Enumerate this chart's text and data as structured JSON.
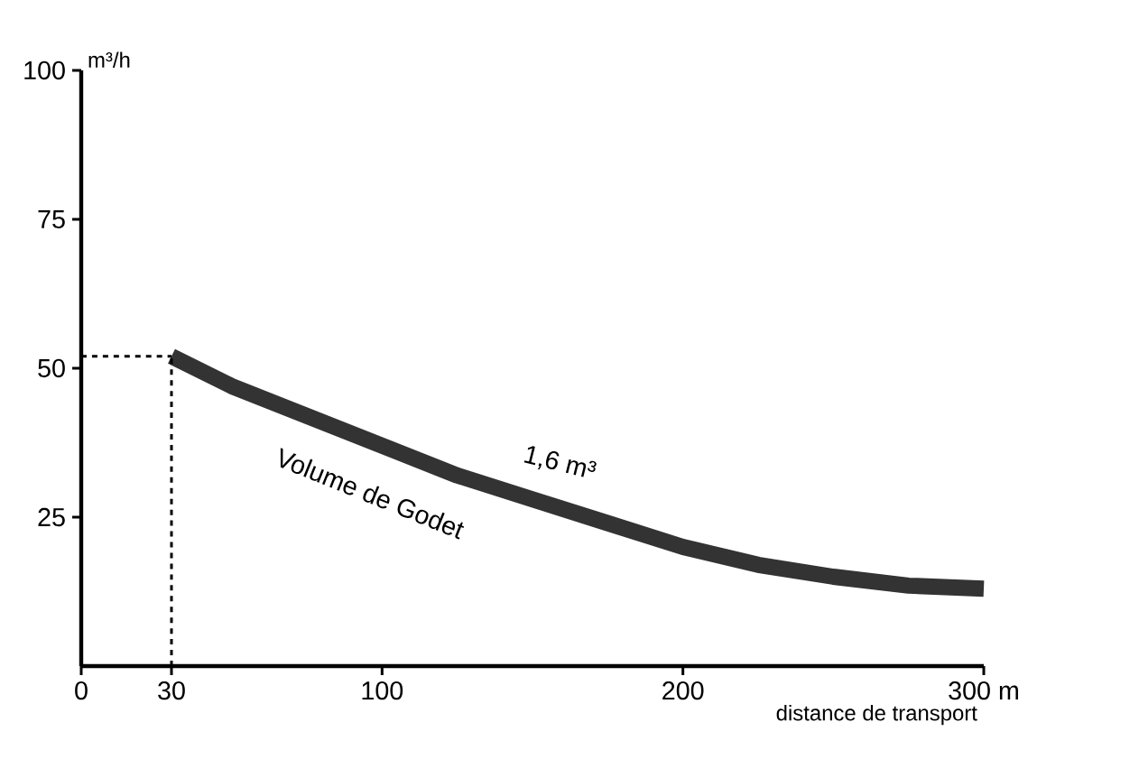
{
  "chart_data": {
    "type": "line",
    "xlabel": "distance de transport",
    "ylabel": "m³/h",
    "x": [
      30,
      50,
      75,
      100,
      125,
      150,
      175,
      200,
      225,
      250,
      275,
      300
    ],
    "series": [
      {
        "color": "#333333",
        "values": [
          52,
          47,
          42,
          37,
          32,
          28,
          24,
          20,
          17,
          15,
          13.5,
          13
        ]
      }
    ],
    "xlim": [
      0,
      300
    ],
    "ylim": [
      0,
      100
    ],
    "xticks": [
      0,
      30,
      100,
      200,
      {
        "value": 300,
        "label": "300 m"
      }
    ],
    "yticks": [
      25,
      50,
      75,
      100
    ],
    "ref_lines": [
      {
        "axis": "y",
        "value": 52,
        "line_style": "dashed"
      },
      {
        "axis": "x",
        "value": 30,
        "line_style": "dashed"
      }
    ],
    "annotations": [
      "1,6 m³",
      "Volume de Godet"
    ],
    "grid": false,
    "marker": "none",
    "line_style": "solid"
  }
}
